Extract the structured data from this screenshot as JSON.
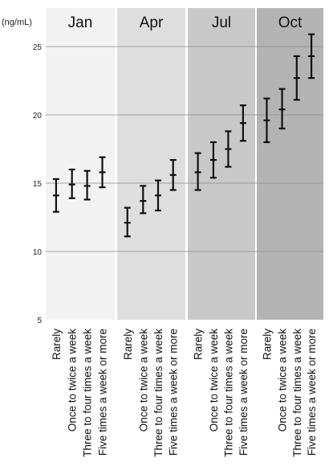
{
  "chart_data": {
    "type": "errorbar",
    "ylabel": "(ng/mL)",
    "ylim": [
      5,
      27
    ],
    "yticks": [
      5,
      10,
      15,
      20,
      25
    ],
    "grid": true,
    "categories": [
      "Rarely",
      "Once to twice a week",
      "Three to four times a week",
      "Five times a week or more"
    ],
    "panels": [
      {
        "name": "Jan",
        "color": "#f2f2f2",
        "values": [
          [
            12.9,
            14.1,
            15.3
          ],
          [
            13.9,
            14.9,
            16.0
          ],
          [
            13.8,
            14.8,
            15.9
          ],
          [
            14.7,
            15.8,
            16.9
          ]
        ]
      },
      {
        "name": "Apr",
        "color": "#dedede",
        "values": [
          [
            11.1,
            12.1,
            13.2
          ],
          [
            12.8,
            13.7,
            14.8
          ],
          [
            13.0,
            14.1,
            15.2
          ],
          [
            14.5,
            15.6,
            16.7
          ]
        ]
      },
      {
        "name": "Jul",
        "color": "#c8c8c8",
        "values": [
          [
            14.5,
            15.8,
            17.2
          ],
          [
            15.4,
            16.7,
            18.0
          ],
          [
            16.2,
            17.5,
            18.8
          ],
          [
            18.1,
            19.4,
            20.7
          ]
        ]
      },
      {
        "name": "Oct",
        "color": "#b3b3b3",
        "values": [
          [
            18.0,
            19.6,
            21.2
          ],
          [
            19.0,
            20.4,
            21.9
          ],
          [
            21.1,
            22.7,
            24.3
          ],
          [
            22.7,
            24.3,
            25.9
          ]
        ]
      }
    ]
  }
}
